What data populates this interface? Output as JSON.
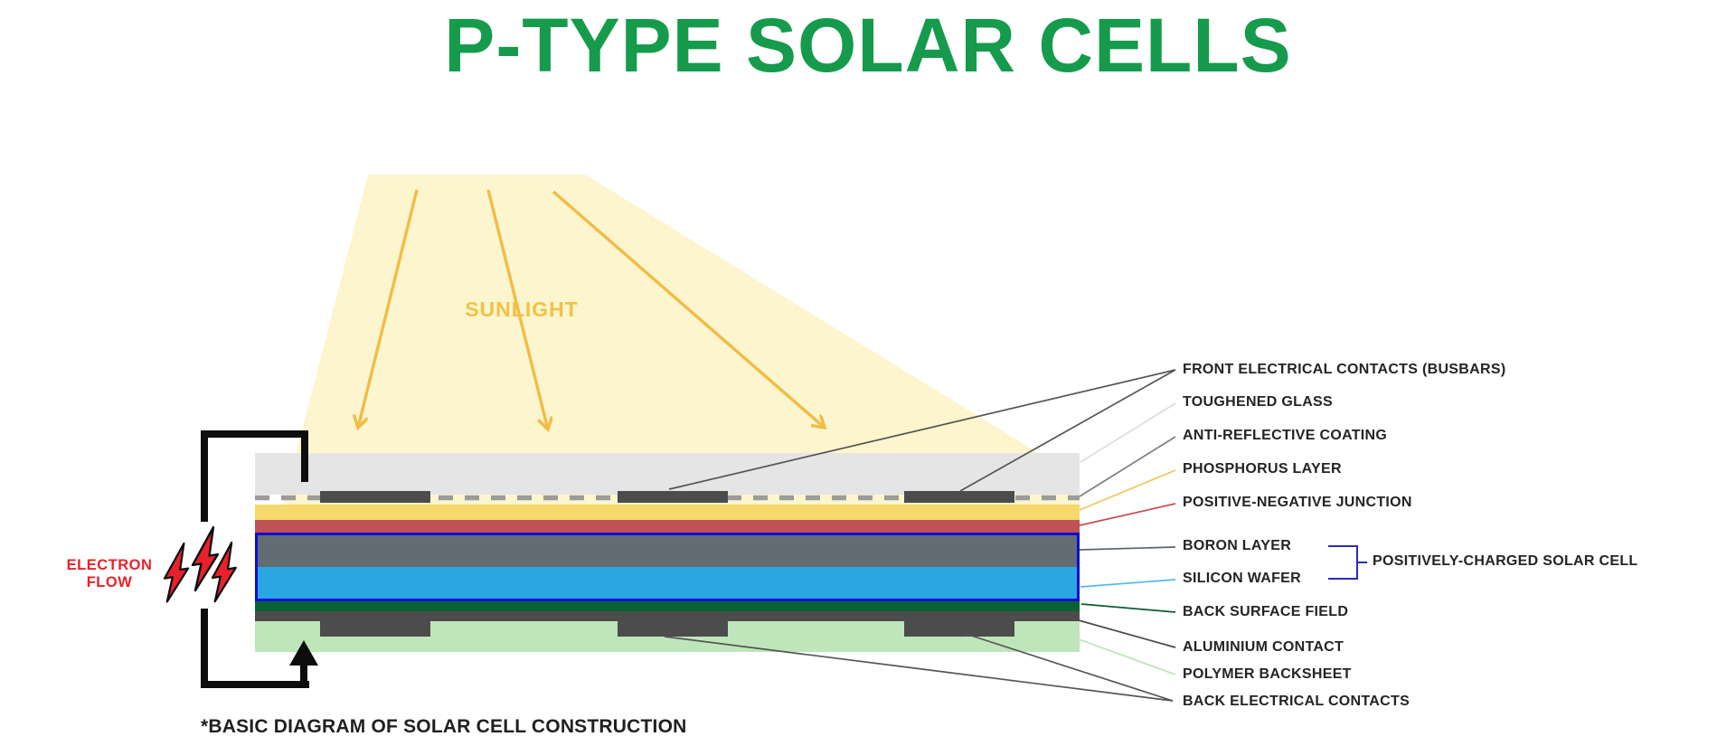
{
  "title": "P-TYPE SOLAR CELLS",
  "sunlight": {
    "label": "SUNLIGHT"
  },
  "electron_flow": {
    "line1": "ELECTRON",
    "line2": "FLOW"
  },
  "caption": "*BASIC DIAGRAM OF SOLAR CELL CONSTRUCTION",
  "layer_labels": [
    {
      "id": "front_contacts",
      "text": "FRONT ELECTRICAL CONTACTS (BUSBARS)"
    },
    {
      "id": "toughened_glass",
      "text": "TOUGHENED GLASS"
    },
    {
      "id": "anti_reflective",
      "text": "ANTI-REFLECTIVE COATING"
    },
    {
      "id": "phosphorus",
      "text": "PHOSPHORUS LAYER"
    },
    {
      "id": "pn_junction",
      "text": "POSITIVE-NEGATIVE JUNCTION"
    },
    {
      "id": "boron",
      "text": "BORON LAYER"
    },
    {
      "id": "silicon",
      "text": "SILICON WAFER"
    },
    {
      "id": "back_surface_field",
      "text": "BACK SURFACE FIELD"
    },
    {
      "id": "aluminium",
      "text": "ALUMINIUM CONTACT"
    },
    {
      "id": "polymer",
      "text": "POLYMER BACKSHEET"
    },
    {
      "id": "back_contacts",
      "text": "BACK ELECTRICAL CONTACTS"
    },
    {
      "id": "positively_charged",
      "text": "POSITIVELY-CHARGED SOLAR CELL"
    }
  ],
  "colors": {
    "title_green": "#159B4B",
    "beam": "#FCF5CE",
    "sun_gold": "#F1BC45",
    "sunlight_text": "#F2C145",
    "glass": "#E5E5E5",
    "dash_gray": "#9B9B9B",
    "contact_dark": "#4C4C4C",
    "phosphorus": "#F5D96B",
    "junction_red": "#C05158",
    "boron_gray": "#626C73",
    "silicon_blue": "#2AA6E2",
    "cell_border_blue": "#0D0DD6",
    "back_surface_green": "#0A6234",
    "backsheet_green": "#BFE6BB",
    "wire_black": "#0D0D0D",
    "electron_red": "#E9212B",
    "bracket_blue": "#2B2BB8",
    "label_text": "#222426",
    "leaders": {
      "front_contacts": "#555555",
      "toughened_glass": "#DCDCDC",
      "anti_reflective": "#7E7E7E",
      "phosphorus": "#EDC75B",
      "pn_junction": "#C25056",
      "boron": "#5A646A",
      "silicon": "#4FB9F2",
      "back_surface_field": "#0A5D33",
      "aluminium": "#4A4A4A",
      "polymer": "#BCE3B8",
      "back_contacts": "#555555"
    }
  }
}
